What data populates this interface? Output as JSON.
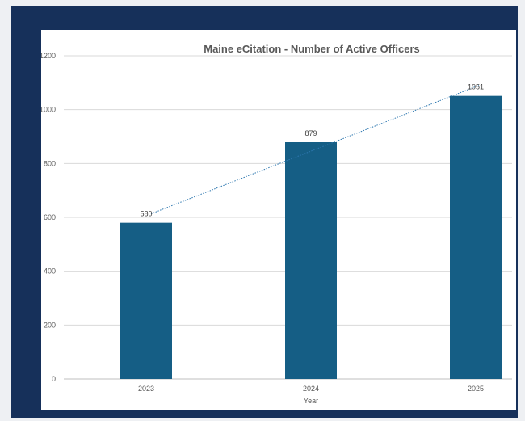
{
  "chart_data": {
    "type": "bar",
    "title": "Maine eCitation - Number of Active Officers",
    "xlabel": "Year",
    "ylabel": "",
    "categories": [
      "2023",
      "2024",
      "2025"
    ],
    "values": [
      580,
      879,
      1051
    ],
    "data_labels": [
      "580",
      "879",
      "1051"
    ],
    "y_ticks": [
      "0",
      "200",
      "400",
      "600",
      "800",
      "1000",
      "1200"
    ],
    "ylim": [
      0,
      1200
    ],
    "grid": true,
    "legend": "none",
    "trendline": "linear, dotted",
    "colors": {
      "bar": "#155e85",
      "trendline": "#2e78b0",
      "frame": "#16305a",
      "gridline": "#d9d9d9"
    }
  }
}
